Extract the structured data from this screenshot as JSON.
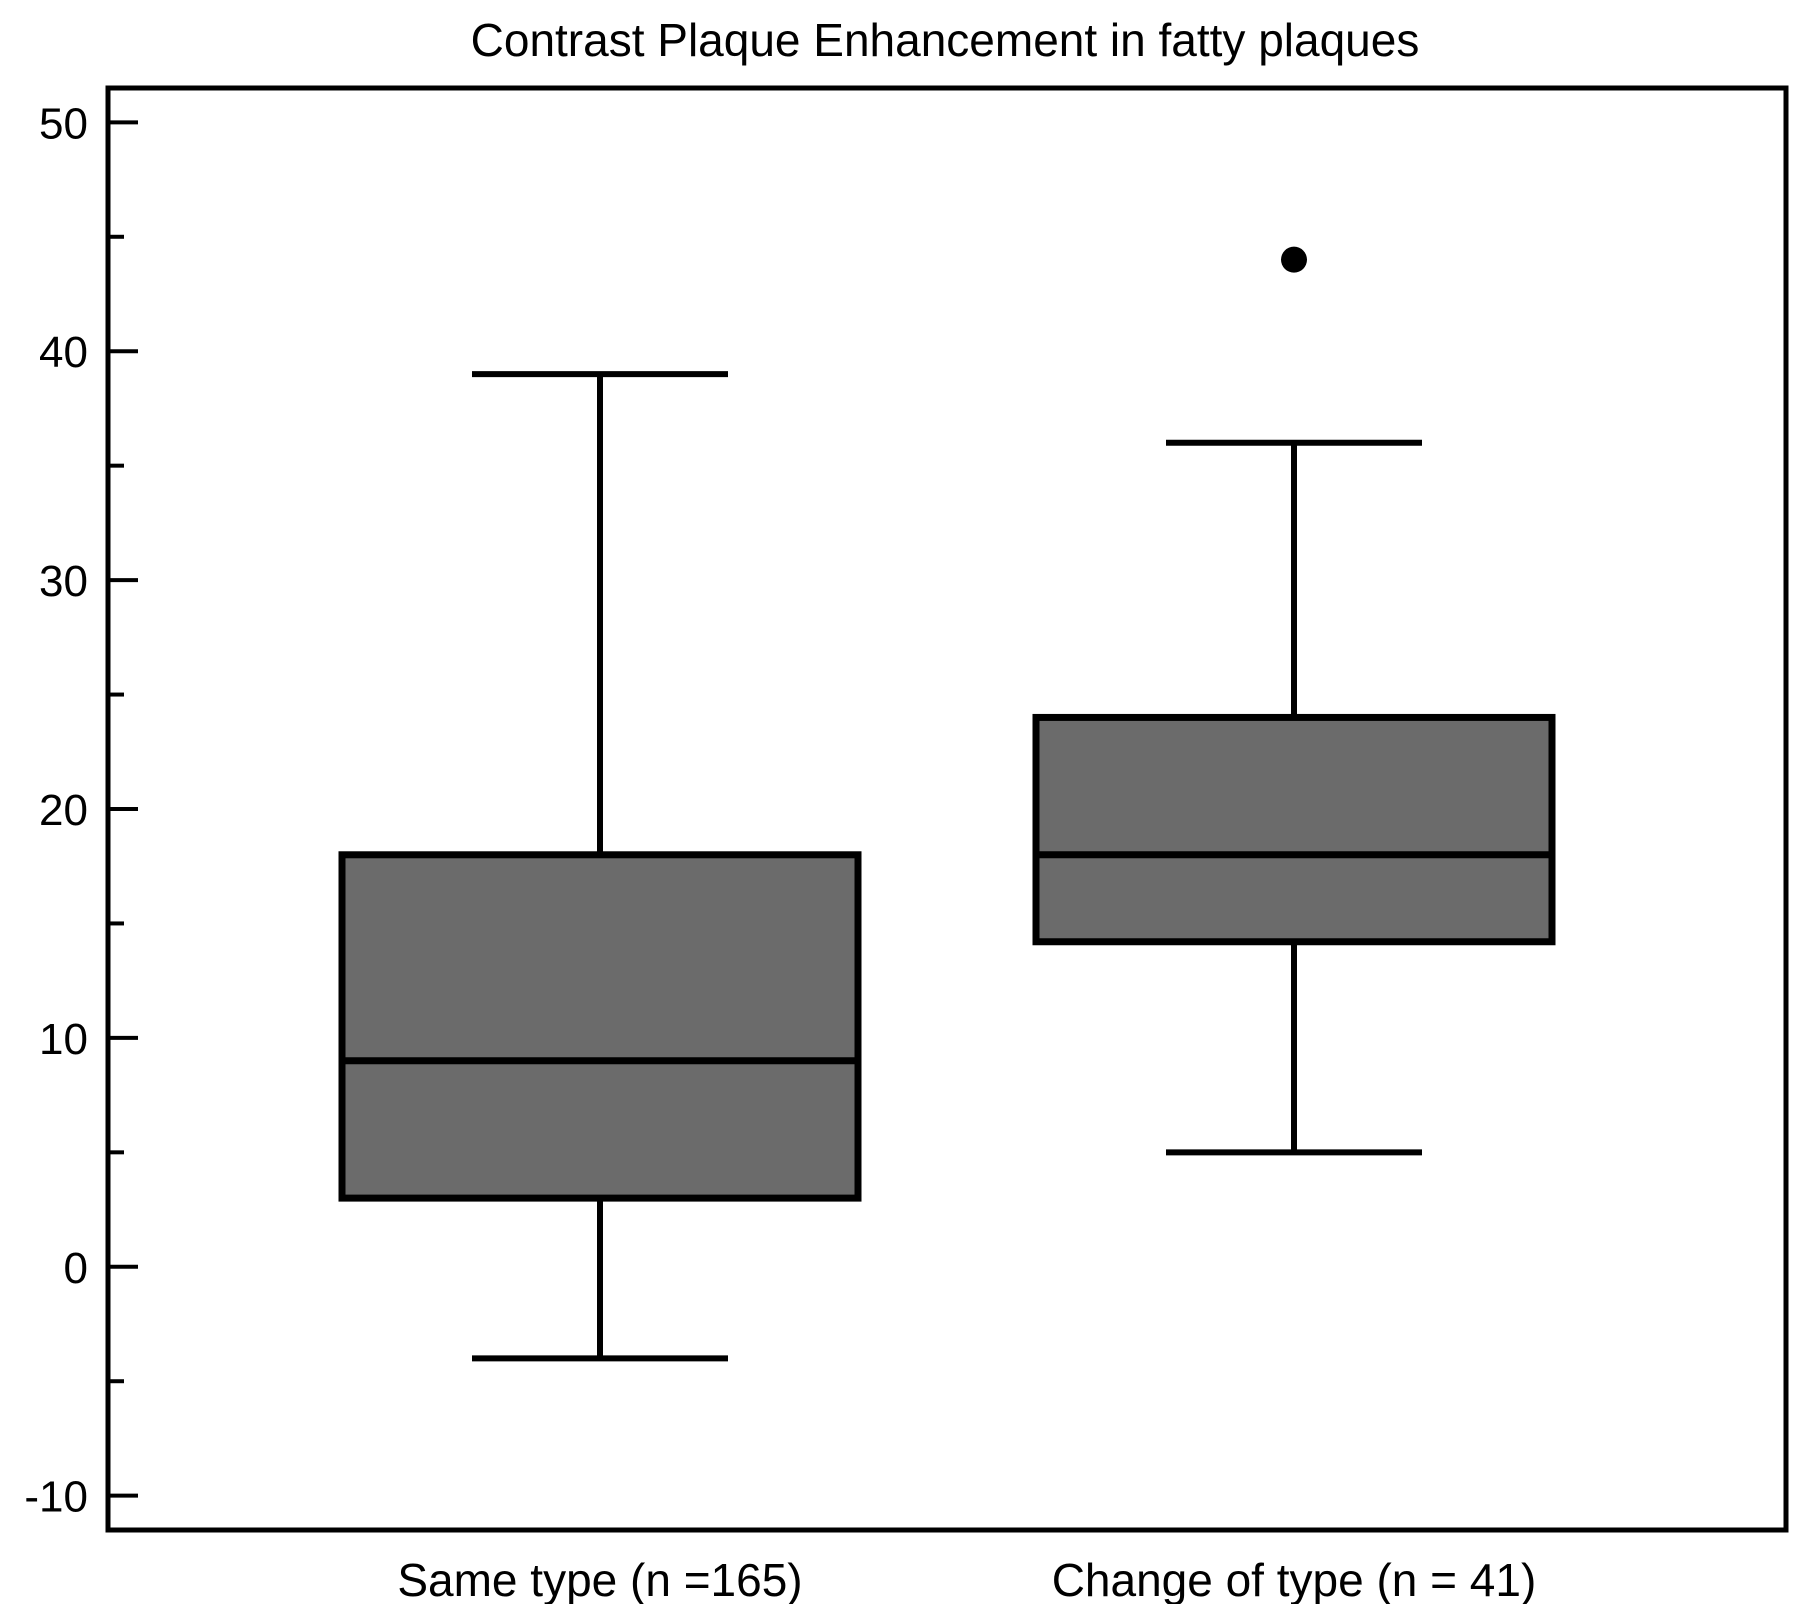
{
  "chart_data": {
    "type": "boxplot",
    "title": "Contrast Plaque Enhancement in fatty plaques",
    "xlabel": "",
    "ylabel": "",
    "ylim": [
      -11.5,
      51.5
    ],
    "y_ticks_major": [
      -10,
      0,
      10,
      20,
      30,
      40,
      50
    ],
    "y_ticks_minor": [
      -5,
      5,
      15,
      25,
      35,
      45
    ],
    "y_tick_labels": [
      "-10",
      "0",
      "10",
      "20",
      "30",
      "40",
      "50"
    ],
    "grid": false,
    "legend": "none",
    "categories": [
      "Same type  (n =165)",
      "Change of type (n = 41)"
    ],
    "boxes": [
      {
        "whisker_low": -4,
        "q1": 3,
        "median": 9,
        "q3": 18,
        "whisker_high": 39,
        "outliers": []
      },
      {
        "whisker_low": 5,
        "q1": 14.2,
        "median": 18,
        "q3": 24,
        "whisker_high": 36,
        "outliers": [
          44
        ]
      }
    ],
    "colors": {
      "box_fill": "#6b6b6b",
      "stroke": "#000000",
      "background": "#ffffff"
    }
  }
}
